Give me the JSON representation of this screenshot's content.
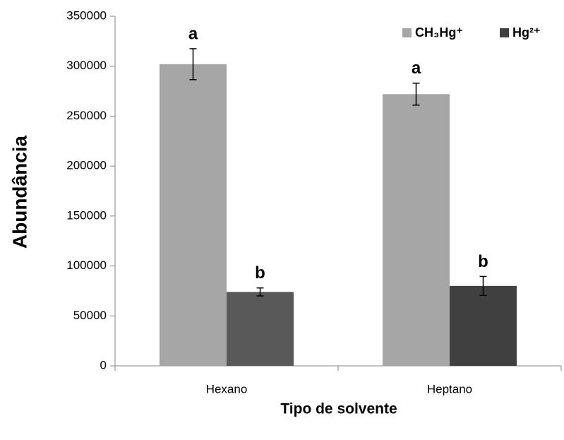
{
  "chart_data": {
    "type": "bar",
    "x_label": "Tipo de solvente",
    "y_label": "Abundância",
    "categories": [
      "Hexano",
      "Heptano"
    ],
    "series": [
      {
        "name": "CH₃Hg⁺",
        "color": "#a6a6a6",
        "values": [
          302000,
          272000
        ],
        "errors": [
          15500,
          11000
        ],
        "labels": [
          "a",
          "a"
        ]
      },
      {
        "name": "Hg²⁺",
        "color": "#404040",
        "colors": [
          "#595959",
          "#404040"
        ],
        "values": [
          74000,
          80000
        ],
        "errors": [
          4000,
          9500
        ],
        "labels": [
          "b",
          "b"
        ]
      }
    ],
    "ylim": [
      0,
      350000
    ],
    "yticks": [
      0,
      50000,
      100000,
      150000,
      200000,
      250000,
      300000,
      350000
    ],
    "grid": false,
    "legend": "top-right"
  }
}
